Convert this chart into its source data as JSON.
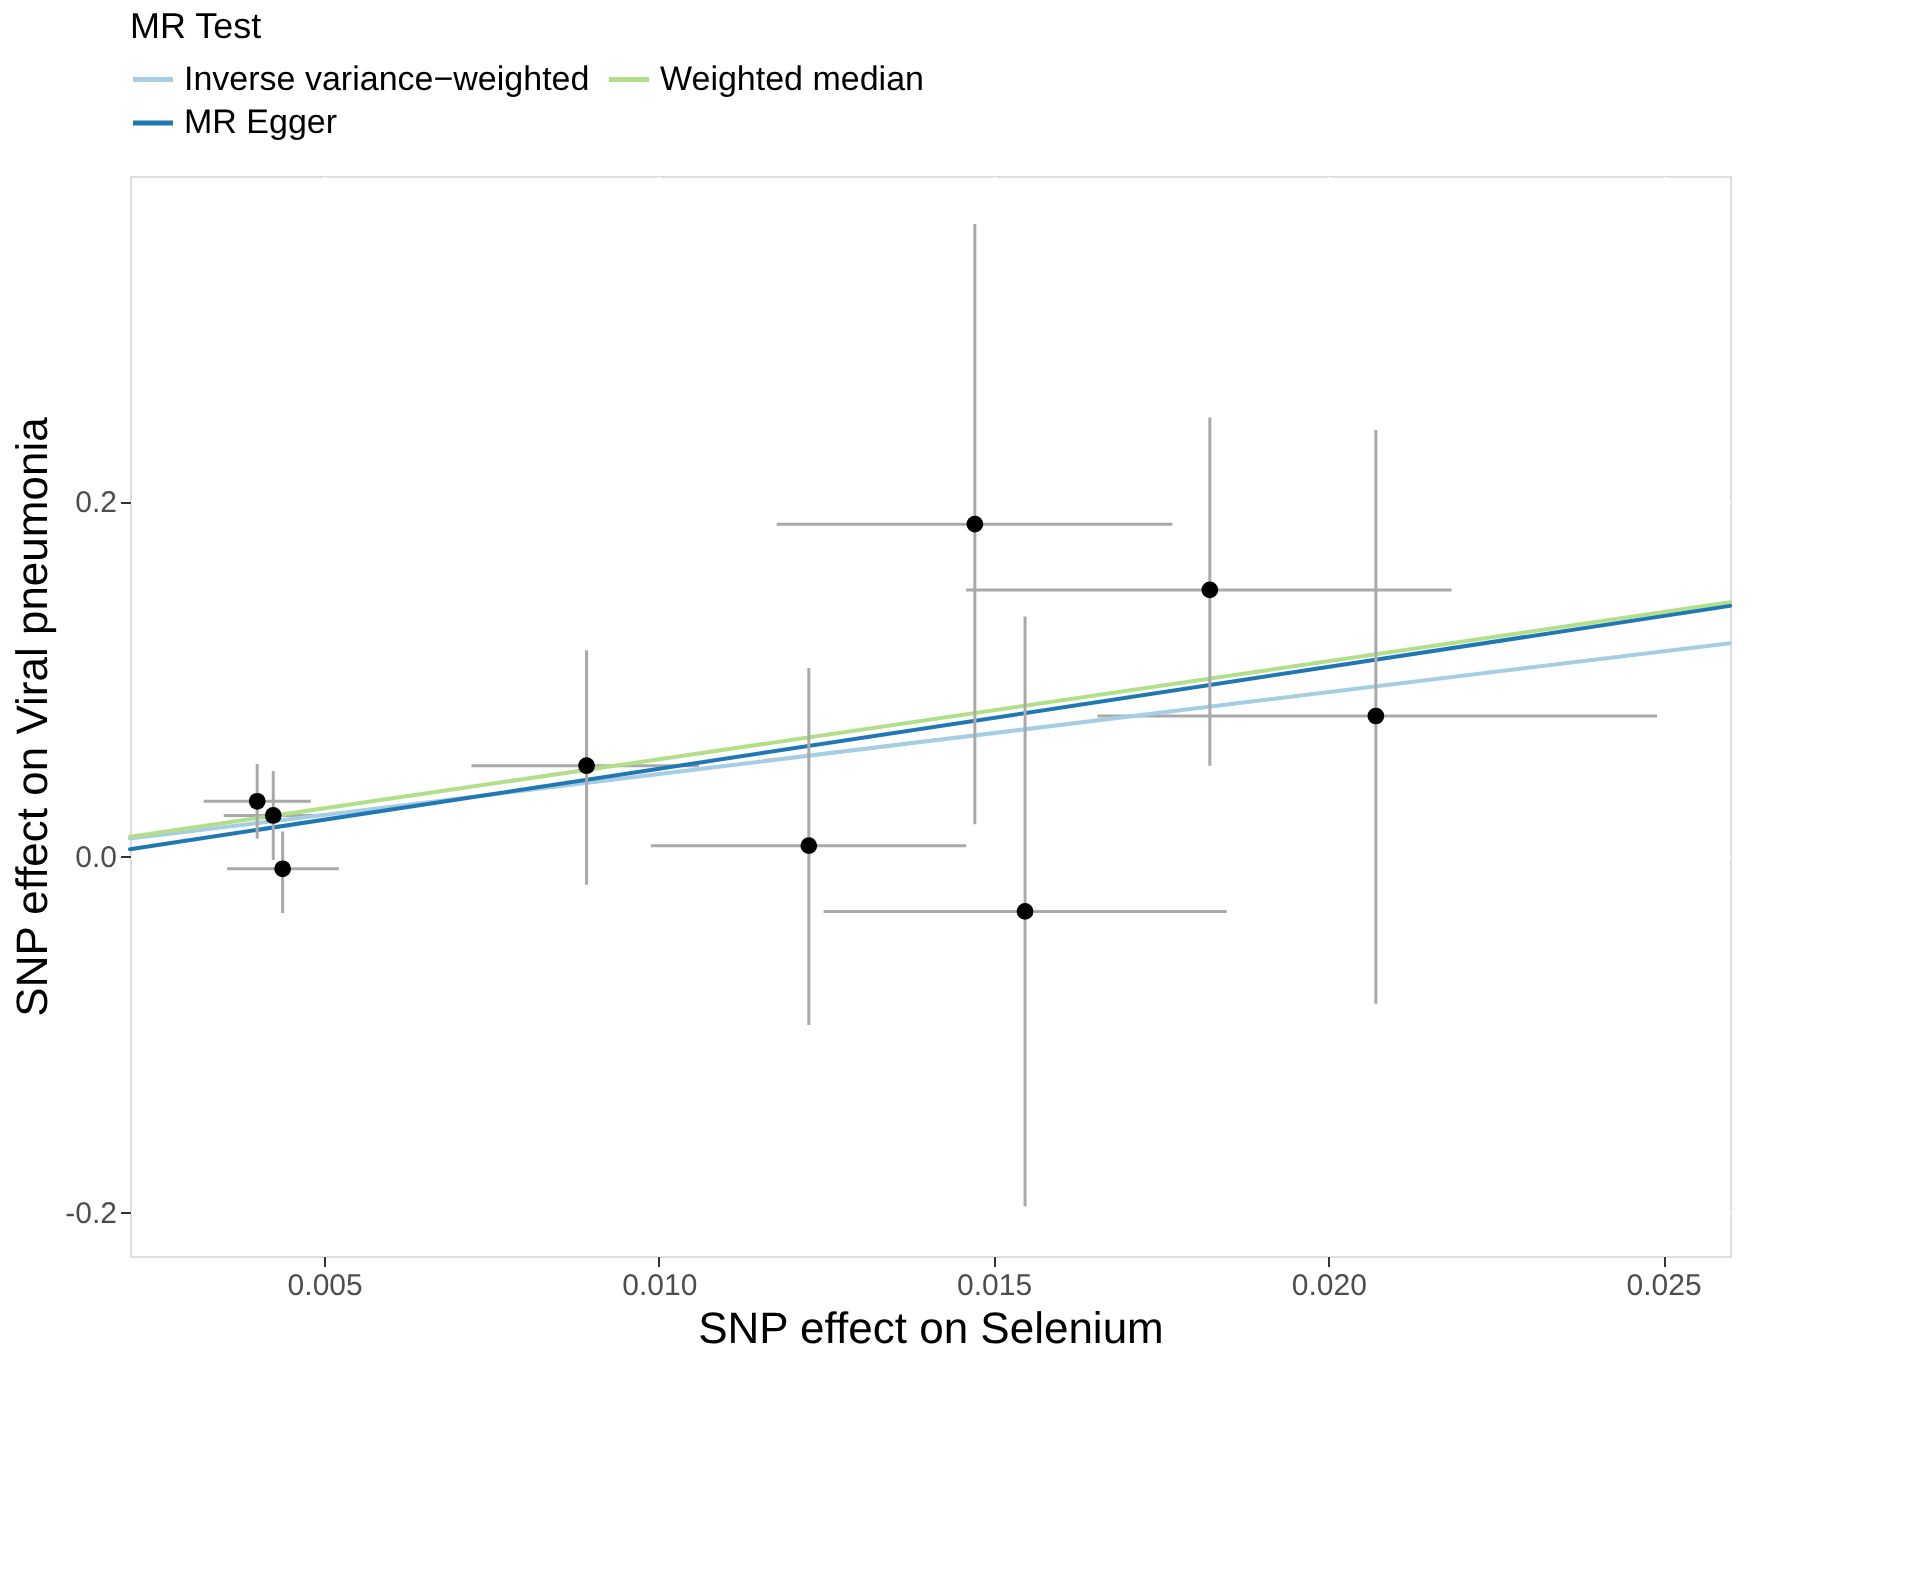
{
  "chart_data": {
    "type": "scatter",
    "xlabel": "SNP effect on Selenium",
    "ylabel": "SNP effect on Viral pneumonia",
    "legend_title": "MR Test",
    "xlim": [
      0.0021,
      0.026
    ],
    "ylim": [
      -0.225,
      0.383
    ],
    "xticks": [
      0.005,
      {
        "value": 0.01,
        "label": "0.010"
      },
      0.015,
      {
        "value": 0.02,
        "label": "0.020"
      },
      0.025
    ],
    "yticks": [
      -0.2,
      {
        "value": 0,
        "label": "0.0"
      },
      0.2
    ],
    "grid": true,
    "legend": "top",
    "series": [
      {
        "color": "#000000",
        "marker": "circle",
        "x": [
          0.004,
          0.00424,
          0.00438,
          0.00892,
          0.01224,
          0.01472,
          0.01547,
          0.01823,
          0.02071
        ],
        "values": [
          0.031,
          0.023,
          -0.007,
          0.051,
          0.006,
          0.187,
          -0.031,
          0.15,
          0.079
        ],
        "errors": [
          [
            0.01,
            0.052
          ],
          [
            -0.002,
            0.048
          ],
          [
            -0.032,
            0.014
          ],
          [
            -0.016,
            0.116
          ],
          [
            -0.095,
            0.106
          ],
          [
            0.018,
            0.356
          ],
          [
            -0.197,
            0.135
          ],
          [
            0.051,
            0.247
          ],
          [
            -0.083,
            0.24
          ]
        ],
        "xerrors": [
          [
            0.0032,
            0.0048
          ],
          [
            0.0035,
            0.005
          ],
          [
            0.00355,
            0.00522
          ],
          [
            0.0072,
            0.0106
          ],
          [
            0.00988,
            0.01459
          ],
          [
            0.01176,
            0.01767
          ],
          [
            0.01246,
            0.01848
          ],
          [
            0.01459,
            0.02184
          ],
          [
            0.01655,
            0.02491
          ]
        ]
      },
      {
        "type": "line",
        "name": "Inverse variance−weighted",
        "color": "#a6cee3",
        "x": [
          0.0021,
          0.026
        ],
        "values": [
          0.01,
          0.12
        ]
      },
      {
        "type": "line",
        "name": "Weighted median",
        "color": "#b2df8a",
        "x": [
          0.0021,
          0.026
        ],
        "values": [
          0.011,
          0.143
        ]
      },
      {
        "type": "line",
        "name": "MR Egger",
        "color": "#1f78b4",
        "x": [
          0.0021,
          0.026
        ],
        "values": [
          0.004,
          0.141
        ]
      }
    ]
  }
}
